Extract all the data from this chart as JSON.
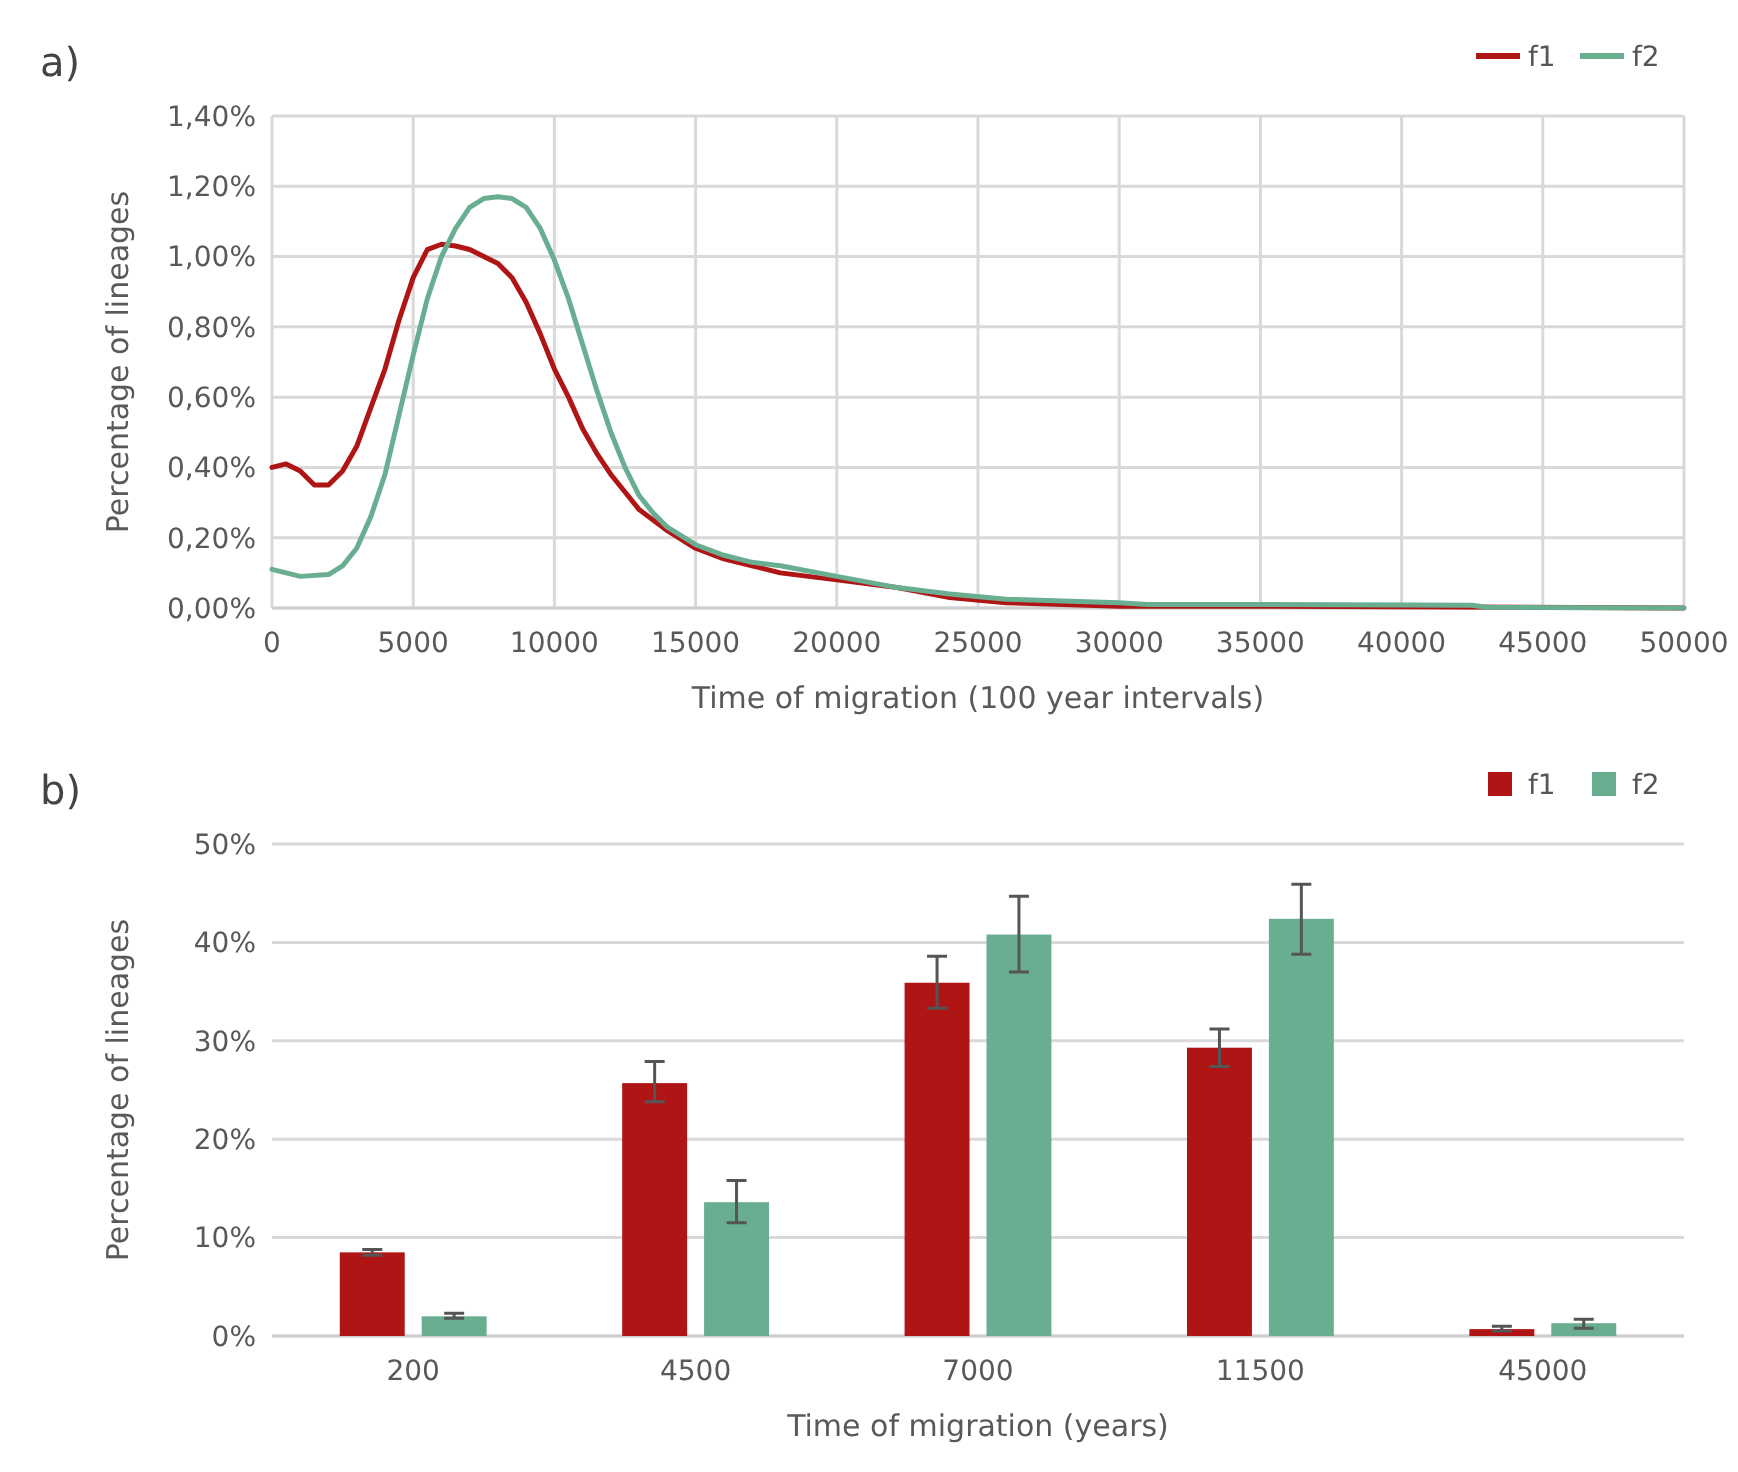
{
  "chart_data": [
    {
      "type": "line",
      "title": "a)",
      "xlabel": "Time of migration (100 year intervals)",
      "ylabel": "Percentage of lineages",
      "legend": "top right",
      "grid": true,
      "xlim": [
        0,
        50000
      ],
      "xticks": [
        0,
        5000,
        10000,
        15000,
        20000,
        25000,
        30000,
        35000,
        40000,
        45000,
        50000
      ],
      "ylim": [
        0,
        1.4
      ],
      "yticks": [
        {
          "value": 0,
          "label": "0,00%"
        },
        {
          "value": 0.2,
          "label": "0,20%"
        },
        {
          "value": 0.4,
          "label": "0,40%"
        },
        {
          "value": 0.6,
          "label": "0,60%"
        },
        {
          "value": 0.8,
          "label": "0,80%"
        },
        {
          "value": 1.0,
          "label": "1,00%"
        },
        {
          "value": 1.2,
          "label": "1,20%"
        },
        {
          "value": 1.4,
          "label": "1,40%"
        }
      ],
      "series": [
        {
          "name": "f1",
          "color": "#b01515",
          "x": [
            0,
            500,
            1000,
            1500,
            2000,
            2500,
            3000,
            3500,
            4000,
            4500,
            5000,
            5500,
            6000,
            6500,
            7000,
            7500,
            8000,
            8500,
            9000,
            9500,
            10000,
            10500,
            11000,
            11500,
            12000,
            12500,
            13000,
            14000,
            15000,
            16000,
            17000,
            18000,
            20000,
            22000,
            24000,
            26000,
            28000,
            30000,
            35000,
            42000,
            50000
          ],
          "values": [
            0.4,
            0.41,
            0.39,
            0.35,
            0.35,
            0.39,
            0.46,
            0.57,
            0.68,
            0.82,
            0.94,
            1.02,
            1.035,
            1.03,
            1.02,
            1.0,
            0.98,
            0.94,
            0.87,
            0.78,
            0.68,
            0.6,
            0.51,
            0.44,
            0.38,
            0.33,
            0.28,
            0.22,
            0.17,
            0.14,
            0.12,
            0.1,
            0.08,
            0.06,
            0.03,
            0.015,
            0.01,
            0.005,
            0.005,
            0.003,
            0
          ]
        },
        {
          "name": "f2",
          "color": "#6aae92",
          "x": [
            0,
            1000,
            2000,
            2500,
            3000,
            3500,
            4000,
            4500,
            5000,
            5500,
            6000,
            6500,
            7000,
            7500,
            8000,
            8500,
            9000,
            9500,
            10000,
            10500,
            11000,
            11500,
            12000,
            12500,
            13000,
            13500,
            14000,
            15000,
            16000,
            17000,
            18000,
            20000,
            22000,
            24000,
            26000,
            28000,
            30000,
            31000,
            35000,
            42500,
            43000,
            50000
          ],
          "values": [
            0.11,
            0.09,
            0.095,
            0.12,
            0.17,
            0.26,
            0.38,
            0.55,
            0.72,
            0.88,
            1.0,
            1.08,
            1.14,
            1.165,
            1.17,
            1.165,
            1.14,
            1.08,
            0.99,
            0.88,
            0.75,
            0.62,
            0.5,
            0.4,
            0.32,
            0.27,
            0.23,
            0.18,
            0.15,
            0.13,
            0.12,
            0.09,
            0.06,
            0.04,
            0.025,
            0.02,
            0.015,
            0.01,
            0.01,
            0.008,
            0.002,
            0
          ]
        }
      ]
    },
    {
      "type": "bar",
      "title": "b)",
      "xlabel": "Time of migration (years)",
      "ylabel": "Percentage of lineages",
      "legend": "top right",
      "grid": "y",
      "categories": [
        "200",
        "4500",
        "7000",
        "11500",
        "45000"
      ],
      "ylim": [
        0,
        50
      ],
      "yticks": [
        {
          "value": 0,
          "label": "0%"
        },
        {
          "value": 10,
          "label": "10%"
        },
        {
          "value": 20,
          "label": "20%"
        },
        {
          "value": 30,
          "label": "30%"
        },
        {
          "value": 40,
          "label": "40%"
        },
        {
          "value": 50,
          "label": "50%"
        }
      ],
      "series": [
        {
          "name": "f1",
          "color": "#b01515",
          "values": [
            8.5,
            25.7,
            35.9,
            29.3,
            0.7
          ],
          "errors": [
            [
              8.2,
              8.8
            ],
            [
              23.8,
              27.9
            ],
            [
              33.3,
              38.6
            ],
            [
              27.4,
              31.2
            ],
            [
              0.5,
              1.0
            ]
          ]
        },
        {
          "name": "f2",
          "color": "#6aae92",
          "values": [
            2.0,
            13.6,
            40.8,
            42.4,
            1.3
          ],
          "errors": [
            [
              1.8,
              2.3
            ],
            [
              11.5,
              15.8
            ],
            [
              37.0,
              44.7
            ],
            [
              38.8,
              45.9
            ],
            [
              0.8,
              1.7
            ]
          ]
        }
      ]
    }
  ]
}
